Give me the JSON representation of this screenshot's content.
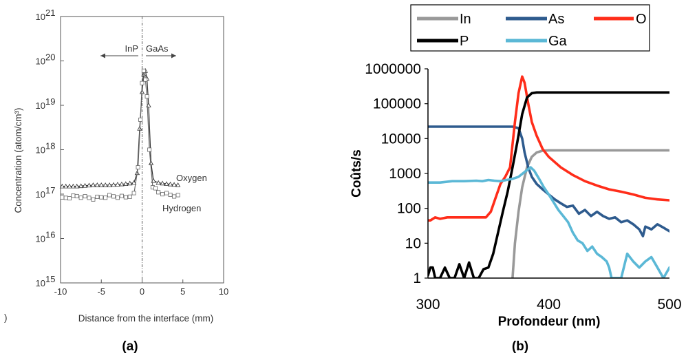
{
  "chart_data": [
    {
      "panel_label": "(a)",
      "type": "line",
      "title": "",
      "xlabel": "Distance from the interface (mm)",
      "ylabel": "Concentration (atom/cm³)",
      "xlim": [
        -10,
        10
      ],
      "ylim": [
        1000000000000000.0,
        1e+21
      ],
      "yscale": "log",
      "x_ticks": [
        "-10",
        "-5",
        "0",
        "5",
        "10"
      ],
      "y_ticks": [
        {
          "base": "10",
          "exp": "15"
        },
        {
          "base": "10",
          "exp": "16"
        },
        {
          "base": "10",
          "exp": "17"
        },
        {
          "base": "10",
          "exp": "18"
        },
        {
          "base": "10",
          "exp": "19"
        },
        {
          "base": "10",
          "exp": "20"
        },
        {
          "base": "10",
          "exp": "21"
        }
      ],
      "region_labels": {
        "left": "InP",
        "right": "GaAs"
      },
      "stray_mark": ")",
      "series": [
        {
          "name": "Oxygen",
          "color": "#333333",
          "marker": "triangle",
          "x": [
            -9.8,
            -8,
            -6,
            -4,
            -2,
            -1,
            -0.6,
            -0.3,
            0,
            0.2,
            0.4,
            0.6,
            0.8,
            1.1,
            1.4,
            2,
            3,
            4.4
          ],
          "y": [
            1.5e+17,
            1.5e+17,
            1.6e+17,
            1.6e+17,
            1.7e+17,
            1.8e+17,
            3e+17,
            3e+18,
            2e+19,
            5e+19,
            6e+19,
            4e+19,
            1e+19,
            5e+17,
            2e+17,
            1.8e+17,
            1.7e+17,
            1.6e+17
          ]
        },
        {
          "name": "Hydrogen",
          "color": "#666666",
          "marker": "square",
          "x": [
            -9.8,
            -8,
            -6,
            -4,
            -2,
            -1,
            -0.5,
            -0.2,
            0,
            0.2,
            0.4,
            0.6,
            0.9,
            1.3,
            2,
            3,
            4.4
          ],
          "y": [
            8e+16,
            9e+16,
            8e+16,
            9e+16,
            8.5e+16,
            1e+17,
            4e+17,
            5e+18,
            3e+19,
            6e+19,
            4e+19,
            1.5e+19,
            1e+18,
            1.5e+17,
            1.1e+17,
            1e+17,
            9e+16
          ]
        }
      ]
    },
    {
      "panel_label": "(b)",
      "type": "line",
      "title": "",
      "xlabel": "Profondeur (nm)",
      "ylabel": "Coûts/s",
      "xlim": [
        300,
        500
      ],
      "ylim": [
        1,
        1000000
      ],
      "yscale": "log",
      "x_ticks": [
        "300",
        "400",
        "500"
      ],
      "y_ticks": [
        "1",
        "10",
        "100",
        "1000",
        "10000",
        "100000",
        "1000000"
      ],
      "legend_placement": "top",
      "series": [
        {
          "name": "In",
          "color": "#999999",
          "x": [
            300,
            368,
            369,
            370,
            372,
            375,
            378,
            382,
            386,
            390,
            395,
            400,
            420,
            450,
            480,
            500
          ],
          "y": [
            null,
            null,
            0.5,
            1,
            10,
            80,
            400,
            1500,
            3000,
            4000,
            4500,
            4600,
            4600,
            4600,
            4600,
            4600
          ]
        },
        {
          "name": "As",
          "color": "#2E5B8E",
          "x": [
            300,
            340,
            370,
            375,
            378,
            380,
            383,
            386,
            390,
            395,
            400,
            405,
            410,
            415,
            420,
            425,
            430,
            435,
            440,
            445,
            450,
            455,
            460,
            465,
            470,
            475,
            478,
            480,
            485,
            490,
            495,
            500
          ],
          "y": [
            22000,
            22000,
            22000,
            20000,
            10000,
            4000,
            1500,
            800,
            500,
            350,
            250,
            180,
            140,
            110,
            120,
            70,
            90,
            60,
            80,
            60,
            50,
            55,
            40,
            45,
            35,
            25,
            16,
            30,
            25,
            35,
            28,
            22
          ]
        },
        {
          "name": "O",
          "color": "#FF2D1A",
          "x": [
            300,
            302,
            306,
            310,
            316,
            322,
            330,
            340,
            348,
            352,
            356,
            360,
            364,
            368,
            372,
            375,
            378,
            380,
            383,
            386,
            390,
            395,
            400,
            410,
            420,
            430,
            440,
            450,
            460,
            470,
            480,
            490,
            500
          ],
          "y": [
            45,
            45,
            55,
            50,
            55,
            55,
            55,
            55,
            55,
            80,
            200,
            500,
            800,
            1500,
            30000,
            200000,
            600000,
            400000,
            100000,
            30000,
            12000,
            5000,
            3000,
            1500,
            900,
            600,
            450,
            350,
            300,
            250,
            200,
            180,
            170
          ]
        },
        {
          "name": "P",
          "color": "#000000",
          "x": [
            300,
            302,
            304,
            306,
            310,
            314,
            318,
            322,
            326,
            330,
            334,
            338,
            342,
            346,
            350,
            354,
            358,
            362,
            366,
            370,
            374,
            378,
            382,
            386,
            390,
            400,
            450,
            500
          ],
          "y": [
            1.2,
            2,
            2,
            1,
            1,
            2,
            1,
            1,
            2.5,
            1,
            2.8,
            1,
            1,
            1.8,
            2,
            5,
            20,
            80,
            300,
            1500,
            8000,
            50000,
            150000,
            200000,
            210000,
            210000,
            210000,
            210000
          ]
        },
        {
          "name": "Ga",
          "color": "#5BB8D6",
          "x": [
            300,
            310,
            320,
            330,
            340,
            345,
            350,
            355,
            360,
            365,
            370,
            375,
            380,
            385,
            388,
            392,
            396,
            400,
            404,
            408,
            412,
            416,
            420,
            424,
            428,
            432,
            436,
            440,
            444,
            448,
            450,
            452,
            455,
            460,
            465,
            470,
            475,
            480,
            485,
            490,
            495,
            500
          ],
          "y": [
            550,
            550,
            600,
            600,
            620,
            600,
            650,
            620,
            600,
            650,
            700,
            800,
            1100,
            1500,
            1200,
            700,
            400,
            250,
            150,
            90,
            60,
            40,
            20,
            12,
            10,
            6,
            8,
            5,
            4,
            3,
            2,
            1,
            1,
            1,
            5,
            3,
            2,
            3,
            4,
            2,
            1,
            2
          ]
        }
      ]
    }
  ]
}
